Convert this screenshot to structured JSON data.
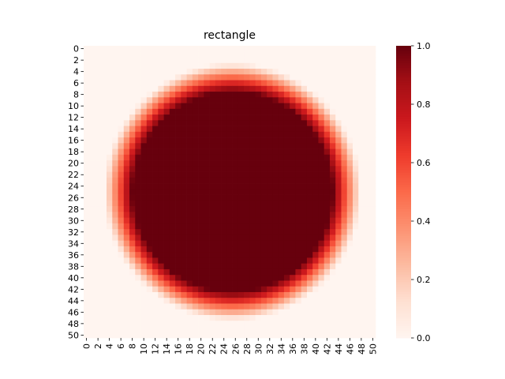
{
  "chart_data": {
    "type": "heatmap",
    "title": "rectangle",
    "xlabel": "",
    "ylabel": "",
    "rows": 51,
    "cols": 51,
    "x_ticks": [
      0,
      2,
      4,
      6,
      8,
      10,
      12,
      14,
      16,
      18,
      20,
      22,
      24,
      26,
      28,
      30,
      32,
      34,
      36,
      38,
      40,
      42,
      44,
      46,
      48,
      50
    ],
    "y_ticks": [
      0,
      2,
      4,
      6,
      8,
      10,
      12,
      14,
      16,
      18,
      20,
      22,
      24,
      26,
      28,
      30,
      32,
      34,
      36,
      38,
      40,
      42,
      44,
      46,
      48,
      50
    ],
    "value_range": [
      0.0,
      1.0
    ],
    "colormap": "Reds",
    "colorbar": {
      "ticks": [
        "0.0",
        "0.2",
        "0.4",
        "0.6",
        "0.8",
        "1.0"
      ],
      "tick_values": [
        0.0,
        0.2,
        0.4,
        0.6,
        0.8,
        1.0
      ]
    },
    "field": {
      "shape": "disc",
      "center_row": 25,
      "center_col": 25.5,
      "inner_radius": 17.5,
      "outer_radius": 22.5,
      "inside_value": 1.0,
      "outside_value": 0.0
    }
  },
  "colors": {
    "colormap_stops": [
      "#fff5f0",
      "#fee0d2",
      "#fcbba1",
      "#fc9272",
      "#fb6a4a",
      "#ef3b2c",
      "#cb181d",
      "#a50f15",
      "#67000d"
    ]
  }
}
